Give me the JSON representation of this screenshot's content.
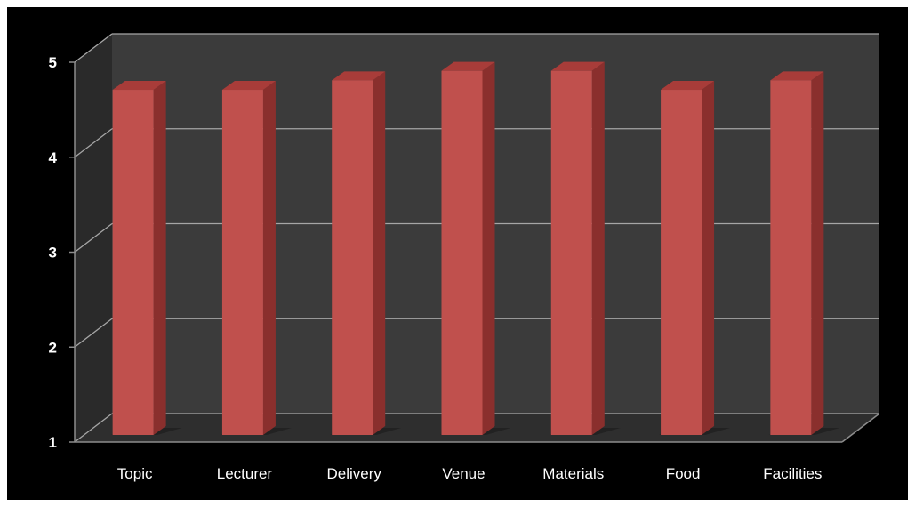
{
  "chart_data": {
    "type": "bar",
    "title": "",
    "xlabel": "",
    "ylabel": "",
    "categories": [
      "Topic",
      "Lecturer",
      "Delivery",
      "Venue",
      "Materials",
      "Food",
      "Facilities"
    ],
    "values": [
      4.7,
      4.7,
      4.8,
      4.9,
      4.9,
      4.7,
      4.8
    ],
    "ylim": [
      1,
      5
    ],
    "yticks": [
      1,
      2,
      3,
      4,
      5
    ],
    "grid": true,
    "legend": "none",
    "style": "3d-column",
    "colors": {
      "background": "#000000",
      "wall": "#3b3b3b",
      "side_wall": "#2a2a2a",
      "floor": "#2e2e2e",
      "gridline": "#a6a6a6",
      "bar_front": "#c0504d",
      "bar_side": "#8a2f2d",
      "bar_top": "#a83c39",
      "text": "#ffffff"
    }
  }
}
